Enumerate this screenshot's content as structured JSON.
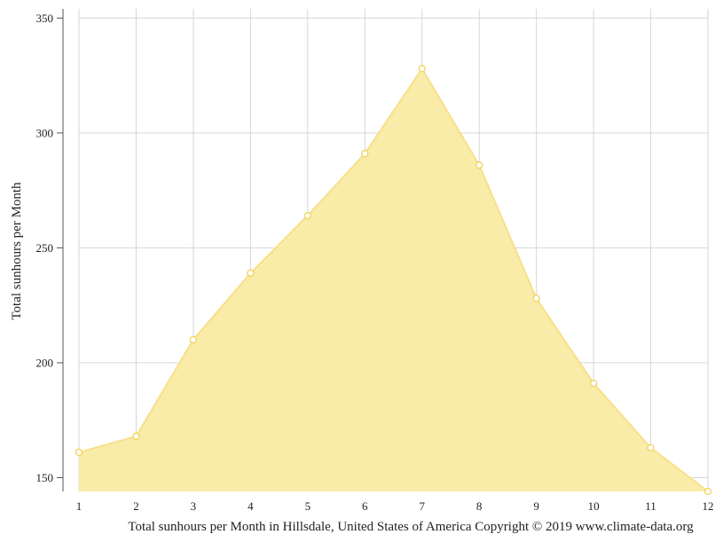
{
  "chart_data": {
    "type": "area",
    "x": [
      1,
      2,
      3,
      4,
      5,
      6,
      7,
      8,
      9,
      10,
      11,
      12
    ],
    "values": [
      161,
      168,
      210,
      239,
      264,
      291,
      328,
      286,
      228,
      191,
      163,
      144
    ],
    "xlabel": "Total sunhours per Month in Hillsdale, United States of America Copyright © 2019 www.climate-data.org",
    "ylabel": "Total sunhours per Month",
    "ylim": [
      144,
      354
    ],
    "yticks": [
      150,
      200,
      250,
      300,
      350
    ],
    "grid": true,
    "legend": "none",
    "colors": {
      "fill": "#f9eba3",
      "line": "#f7e08a",
      "marker_edge": "#f2d25a",
      "grid": "#d6d6d6",
      "axis": "#555555"
    }
  }
}
